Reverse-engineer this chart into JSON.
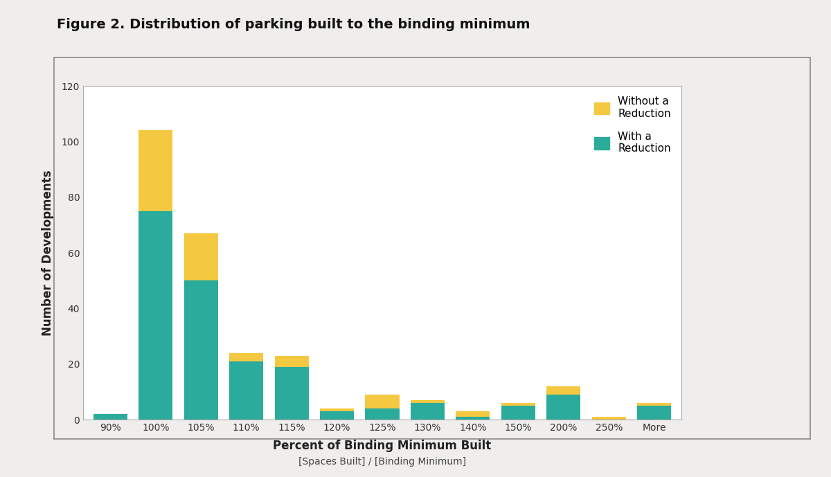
{
  "title": "Figure 2. Distribution of parking built to the binding minimum",
  "xlabel": "Percent of Binding Minimum Built",
  "xlabel2": "[Spaces Built] / [Binding Minimum]",
  "ylabel": "Number of Developments",
  "categories": [
    "90%",
    "100%",
    "105%",
    "110%",
    "115%",
    "120%",
    "125%",
    "130%",
    "140%",
    "150%",
    "200%",
    "250%",
    "More"
  ],
  "with_reduction": [
    2,
    75,
    50,
    21,
    19,
    3,
    4,
    6,
    1,
    5,
    9,
    0,
    5
  ],
  "without_reduction": [
    0,
    29,
    17,
    3,
    4,
    1,
    5,
    1,
    2,
    1,
    3,
    1,
    1
  ],
  "color_with": "#2aab9b",
  "color_without": "#f5c842",
  "ylim": [
    0,
    120
  ],
  "yticks": [
    0,
    20,
    40,
    60,
    80,
    100,
    120
  ],
  "legend_without": "Without a\nReduction",
  "legend_with": "With a\nReduction",
  "bar_width": 0.75,
  "title_fontsize": 14,
  "axis_label_fontsize": 12,
  "tick_fontsize": 10,
  "outer_bg": "#f0eeec",
  "inner_bg": "#ffffff",
  "box_color": "#aaaaaa"
}
